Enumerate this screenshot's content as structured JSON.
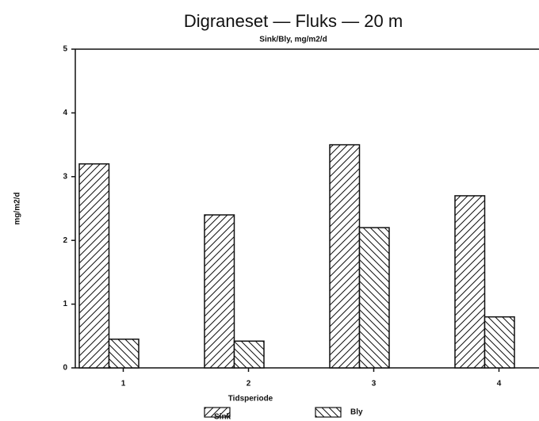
{
  "chart_data": {
    "type": "bar",
    "title": "Digraneset — Fluks — 20 m",
    "subtitle": "Sink/Bly, mg/m2/d",
    "y_label": "mg/m2/d",
    "x_label": "Tidsperiode",
    "categories": [
      "1",
      "2",
      "3",
      "4"
    ],
    "series": [
      {
        "name": "Sink",
        "color": "#111111",
        "hatch": "/",
        "values": [
          3.2,
          2.4,
          3.5,
          2.7
        ]
      },
      {
        "name": "Bly",
        "color": "#111111",
        "hatch": "\\",
        "values": [
          0.45,
          0.42,
          2.2,
          0.8
        ]
      }
    ],
    "ylim": [
      0,
      5
    ],
    "yticks": [
      0,
      1,
      2,
      3,
      4,
      5
    ],
    "legend": "bottom"
  }
}
